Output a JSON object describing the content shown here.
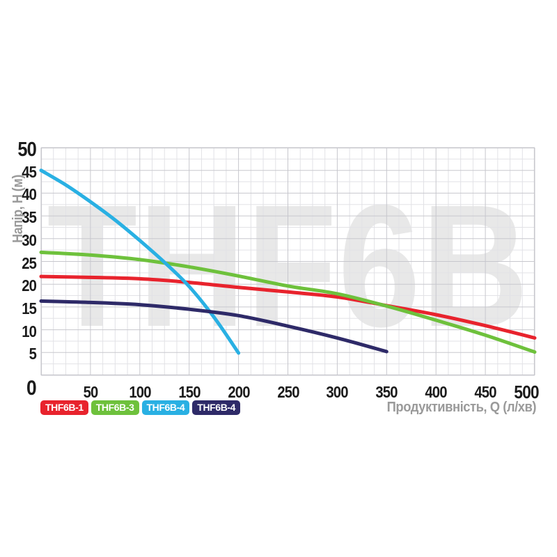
{
  "chart_data": {
    "type": "line",
    "watermark": "THF6B",
    "xlabel": "Продуктивність, Q (л/хв)",
    "ylabel": "Напір, H (м)",
    "xlim": [
      0,
      500
    ],
    "ylim": [
      0,
      50
    ],
    "x_ticks": [
      0,
      50,
      100,
      150,
      200,
      250,
      300,
      350,
      400,
      450,
      500
    ],
    "y_ticks": [
      0,
      5,
      10,
      15,
      20,
      25,
      30,
      35,
      40,
      45,
      50
    ],
    "x_bold_ticks": [
      0,
      500
    ],
    "y_bold_ticks": [
      50
    ],
    "x_minor_step": 12.5,
    "y_minor_step": 2.5,
    "grid": true,
    "legend_position": "bottom-left",
    "series": [
      {
        "name": "THF6B-1",
        "color": "#e8232d",
        "points": [
          [
            0,
            21.7
          ],
          [
            50,
            21.5
          ],
          [
            100,
            21.2
          ],
          [
            150,
            20.4
          ],
          [
            200,
            19.3
          ],
          [
            250,
            18.3
          ],
          [
            300,
            17.2
          ],
          [
            350,
            15.3
          ],
          [
            400,
            13.3
          ],
          [
            450,
            10.9
          ],
          [
            500,
            8.2
          ]
        ]
      },
      {
        "name": "THF6B-3",
        "color": "#6ec13c",
        "points": [
          [
            0,
            27
          ],
          [
            50,
            26.4
          ],
          [
            100,
            25.4
          ],
          [
            150,
            23.8
          ],
          [
            200,
            21.8
          ],
          [
            250,
            19.6
          ],
          [
            300,
            17.9
          ],
          [
            350,
            15.2
          ],
          [
            400,
            12.1
          ],
          [
            450,
            8.8
          ],
          [
            500,
            5.1
          ]
        ]
      },
      {
        "name": "THF6B-4",
        "color": "#29b0e3",
        "points": [
          [
            0,
            45
          ],
          [
            25,
            41.8
          ],
          [
            50,
            38.1
          ],
          [
            75,
            34.1
          ],
          [
            100,
            29.6
          ],
          [
            125,
            24.8
          ],
          [
            150,
            19.5
          ],
          [
            175,
            12.8
          ],
          [
            200,
            4.9
          ]
        ]
      },
      {
        "name": "THF6B-4",
        "color": "#2e2a68",
        "points": [
          [
            0,
            16.3
          ],
          [
            50,
            16
          ],
          [
            100,
            15.5
          ],
          [
            150,
            14.5
          ],
          [
            200,
            13.1
          ],
          [
            250,
            10.8
          ],
          [
            300,
            8.2
          ],
          [
            350,
            5.2
          ]
        ]
      }
    ],
    "colors": {
      "grid_minor": "#e2e2e6",
      "grid_major": "#c7c7cd",
      "tick_label": "#1b1b1b",
      "axis_title": "#9a9a9a",
      "watermark": "#e8e8e8"
    }
  }
}
